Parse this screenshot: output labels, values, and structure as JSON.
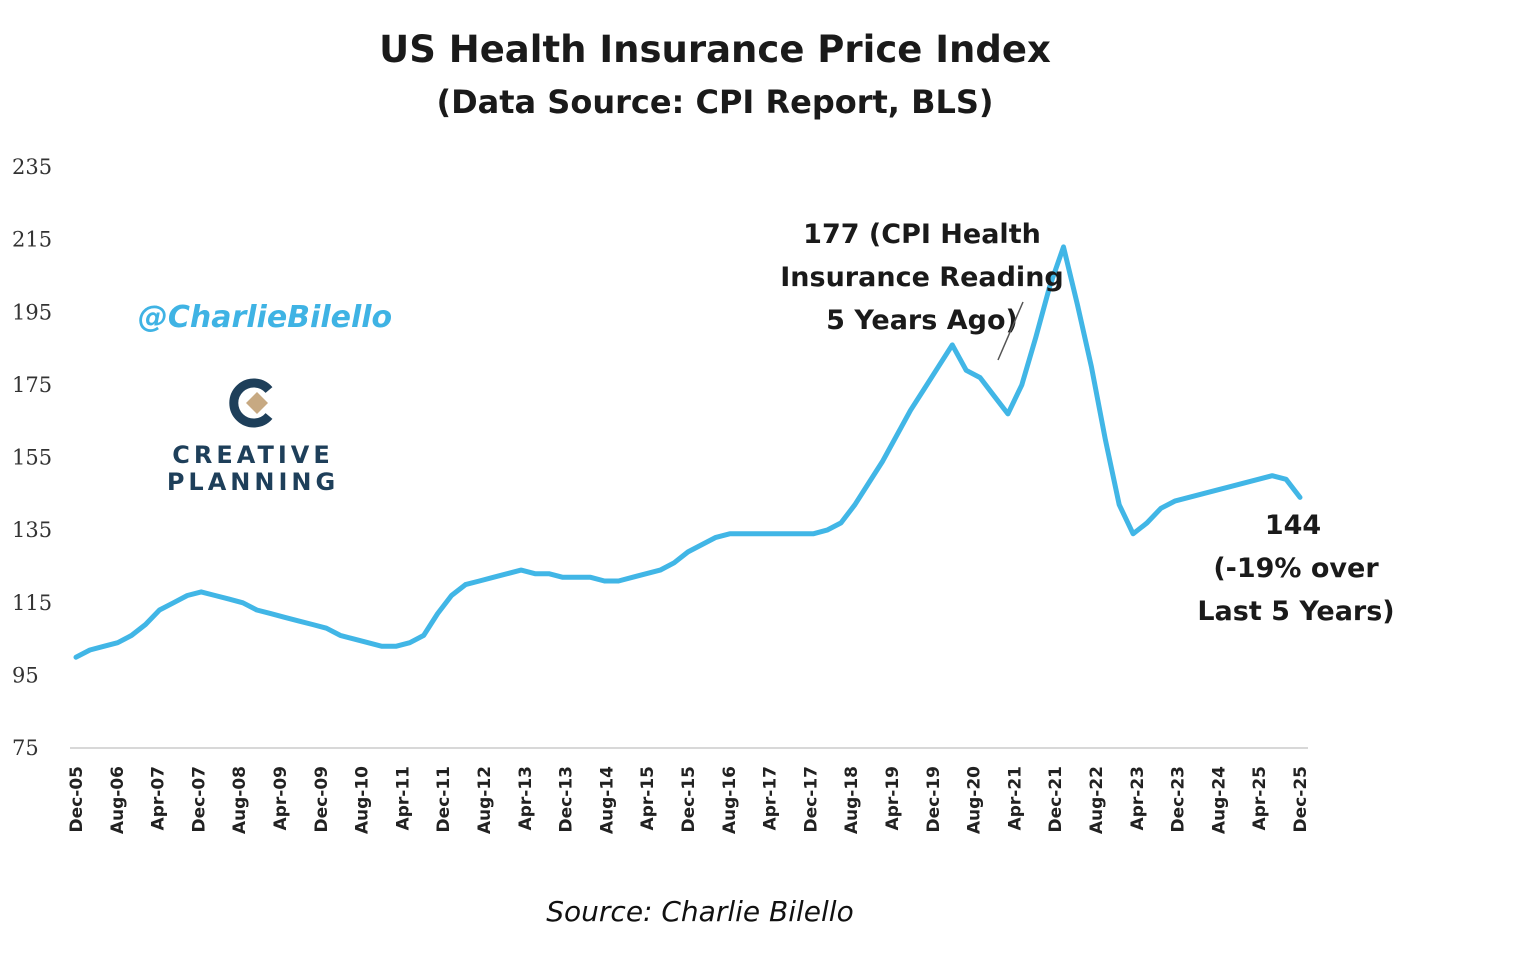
{
  "chart_data": {
    "type": "line",
    "title": "US Health Insurance Price Index",
    "subtitle": "(Data Source: CPI Report, BLS)",
    "xlabel": "",
    "ylabel": "",
    "ylim": [
      75,
      235
    ],
    "yticks": [
      "235",
      "215",
      "195",
      "175",
      "155",
      "135",
      "115",
      "95",
      "75"
    ],
    "xticks": [
      "Dec-05",
      "Aug-06",
      "Apr-07",
      "Dec-07",
      "Aug-08",
      "Apr-09",
      "Dec-09",
      "Aug-10",
      "Apr-11",
      "Dec-11",
      "Aug-12",
      "Apr-13",
      "Dec-13",
      "Aug-14",
      "Apr-15",
      "Dec-15",
      "Aug-16",
      "Apr-17",
      "Dec-17",
      "Aug-18",
      "Apr-19",
      "Dec-19",
      "Aug-20",
      "Apr-21",
      "Dec-21",
      "Aug-22",
      "Apr-23",
      "Dec-23",
      "Aug-24",
      "Apr-25",
      "Dec-25"
    ],
    "grid": false,
    "line_color": "#41b6e6",
    "series": [
      {
        "values": [
          100,
          102,
          103,
          104,
          106,
          109,
          113,
          115,
          117,
          118,
          117,
          116,
          115,
          113,
          112,
          111,
          110,
          109,
          108,
          106,
          105,
          104,
          103,
          103,
          104,
          106,
          112,
          117,
          120,
          121,
          122,
          123,
          124,
          123,
          123,
          122,
          122,
          122,
          121,
          121,
          122,
          123,
          124,
          126,
          129,
          131,
          133,
          134,
          134,
          134,
          134,
          134,
          134,
          134,
          135,
          137,
          142,
          148,
          154,
          161,
          168,
          174,
          180,
          186,
          179,
          177,
          172,
          167,
          175,
          188,
          202,
          213,
          197,
          180,
          160,
          142,
          134,
          137,
          141,
          143,
          144,
          145,
          146,
          147,
          148,
          149,
          150,
          149,
          144
        ]
      }
    ],
    "annotations": {
      "peak_note": [
        "177 (CPI Health",
        "Insurance Reading",
        "5 Years Ago)"
      ],
      "end_value": "144",
      "end_note": [
        "(-19% over",
        "Last 5 Years)"
      ]
    },
    "watermark": {
      "handle": "@CharlieBilello",
      "brand_line1": "CREATIVE",
      "brand_line2": "PLANNING"
    },
    "source": "Source: Charlie Bilello"
  }
}
